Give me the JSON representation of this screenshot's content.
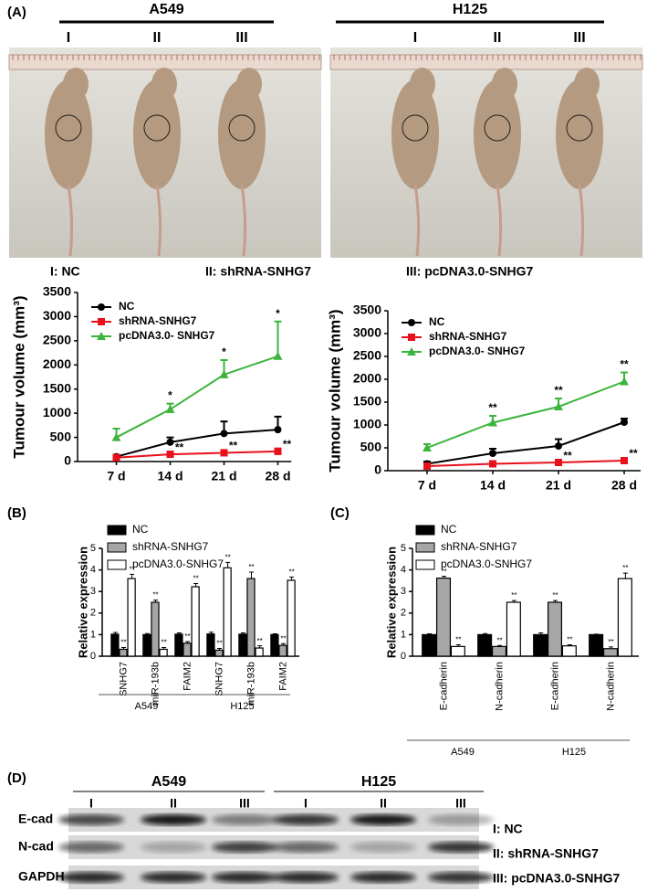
{
  "panel_labels": [
    "(A)",
    "(B)",
    "(C)",
    "(D)"
  ],
  "photos": [
    {
      "group": "A549",
      "lanes": [
        "I",
        "II",
        "III"
      ]
    },
    {
      "group": "H125",
      "lanes": [
        "I",
        "II",
        "III"
      ]
    }
  ],
  "photo_key": [
    "I: NC",
    "II: shRNA-SNHG7",
    "III: pcDNA3.0-SNHG7"
  ],
  "chart_data": [
    {
      "type": "line",
      "y_label": "Tumour volume (mm³)",
      "categories": [
        "7 d",
        "14 d",
        "21 d",
        "28 d"
      ],
      "ylim": [
        0,
        3500
      ],
      "yticks": [
        0,
        500,
        1000,
        1500,
        2000,
        2500,
        3000,
        3500
      ],
      "series": [
        {
          "name": "NC",
          "color": "#000000",
          "marker": "circle",
          "values": [
            100,
            400,
            580,
            660
          ],
          "errors": [
            40,
            100,
            250,
            270
          ],
          "marks": [
            null,
            null,
            null,
            null
          ]
        },
        {
          "name": "shRNA-SNHG7",
          "color": "#e8101a",
          "marker": "square",
          "values": [
            80,
            150,
            180,
            210
          ],
          "errors": [
            30,
            50,
            60,
            60
          ],
          "marks": [
            null,
            "**",
            "**",
            "**"
          ]
        },
        {
          "name": "pcDNA3.0- SNHG7",
          "color": "#3cb43c",
          "marker": "triangle",
          "values": [
            500,
            1080,
            1800,
            2180
          ],
          "errors": [
            180,
            120,
            300,
            720
          ],
          "marks": [
            null,
            "*",
            "*",
            "*"
          ]
        }
      ]
    },
    {
      "type": "line",
      "y_label": "Tumour volume (mm³)",
      "categories": [
        "7 d",
        "14 d",
        "21 d",
        "28 d"
      ],
      "ylim": [
        0,
        3500
      ],
      "yticks": [
        0,
        500,
        1000,
        1500,
        2000,
        2500,
        3000,
        3500
      ],
      "series": [
        {
          "name": "NC",
          "color": "#000000",
          "marker": "circle",
          "values": [
            150,
            380,
            540,
            1060
          ],
          "errors": [
            50,
            100,
            150,
            80
          ],
          "marks": [
            null,
            null,
            null,
            null
          ]
        },
        {
          "name": "shRNA-SNHG7",
          "color": "#e8101a",
          "marker": "square",
          "values": [
            100,
            150,
            180,
            220
          ],
          "errors": [
            30,
            40,
            50,
            60
          ],
          "marks": [
            null,
            null,
            "**",
            "**"
          ]
        },
        {
          "name": "pcDNA3.0- SNHG7",
          "color": "#3cb43c",
          "marker": "triangle",
          "values": [
            500,
            1050,
            1400,
            1950
          ],
          "errors": [
            80,
            150,
            180,
            200
          ],
          "marks": [
            null,
            "**",
            "**",
            "**"
          ]
        }
      ]
    },
    {
      "type": "bar",
      "y_label": "Relative expression",
      "ylim": [
        0,
        5
      ],
      "yticks": [
        0,
        1,
        2,
        3,
        4,
        5
      ],
      "groups": [
        {
          "name": "A549",
          "categories": [
            "SNHG7",
            "miR-193b",
            "FAIM2"
          ]
        },
        {
          "name": "H125",
          "categories": [
            "SNHG7",
            "miR-193b",
            "FAIM2"
          ]
        }
      ],
      "series": [
        {
          "name": "NC",
          "color": "#000000",
          "values": [
            1.02,
            1.0,
            1.02,
            1.03,
            1.02,
            1.0
          ],
          "errors": [
            0.08,
            0.05,
            0.06,
            0.08,
            0.06,
            0.04
          ],
          "marks": [
            null,
            null,
            null,
            null,
            null,
            null
          ]
        },
        {
          "name": "shRNA-SNHG7",
          "color": "#a6a6a6",
          "values": [
            0.32,
            2.5,
            0.6,
            0.28,
            3.6,
            0.5
          ],
          "errors": [
            0.08,
            0.1,
            0.08,
            0.08,
            0.3,
            0.08
          ],
          "marks": [
            "**",
            "**",
            "**",
            "**",
            "**",
            "**"
          ]
        },
        {
          "name": "pcDNA3.0-SNHG7",
          "color": "#ffffff",
          "values": [
            3.6,
            0.32,
            3.22,
            4.1,
            0.38,
            3.52
          ],
          "errors": [
            0.2,
            0.08,
            0.15,
            0.25,
            0.1,
            0.15
          ],
          "marks": [
            "**",
            "**",
            "**",
            "**",
            "**",
            "**"
          ]
        }
      ]
    },
    {
      "type": "bar",
      "y_label": "Relative expression",
      "ylim": [
        0,
        5
      ],
      "yticks": [
        0,
        1,
        2,
        3,
        4,
        5
      ],
      "groups": [
        {
          "name": "A549",
          "categories": [
            "E-cadherin",
            "N-cadherin"
          ]
        },
        {
          "name": "H125",
          "categories": [
            "E-cadherin",
            "N-cadherin"
          ]
        }
      ],
      "series": [
        {
          "name": "NC",
          "color": "#000000",
          "values": [
            1.0,
            1.0,
            1.0,
            1.0
          ],
          "errors": [
            0.04,
            0.05,
            0.08,
            0.02
          ],
          "marks": [
            null,
            null,
            null,
            null
          ]
        },
        {
          "name": "shRNA-SNHG7",
          "color": "#a6a6a6",
          "values": [
            3.62,
            0.45,
            2.5,
            0.35
          ],
          "errors": [
            0.08,
            0.05,
            0.08,
            0.08
          ],
          "marks": [
            "**",
            "**",
            "**",
            "**"
          ]
        },
        {
          "name": "pcDNA3.0-SNHG7",
          "color": "#ffffff",
          "values": [
            0.45,
            2.5,
            0.48,
            3.6
          ],
          "errors": [
            0.08,
            0.08,
            0.05,
            0.25
          ],
          "marks": [
            "**",
            "**",
            "**",
            "**"
          ]
        }
      ]
    }
  ],
  "blot": {
    "groups": [
      {
        "name": "A549",
        "lanes": [
          "I",
          "II",
          "III"
        ]
      },
      {
        "name": "H125",
        "lanes": [
          "I",
          "II",
          "III"
        ]
      }
    ],
    "rows": [
      "E-cad",
      "N-cad",
      "GAPDH"
    ],
    "key": [
      "I: NC",
      "II: shRNA-SNHG7",
      "III: pcDNA3.0-SNHG7"
    ]
  }
}
